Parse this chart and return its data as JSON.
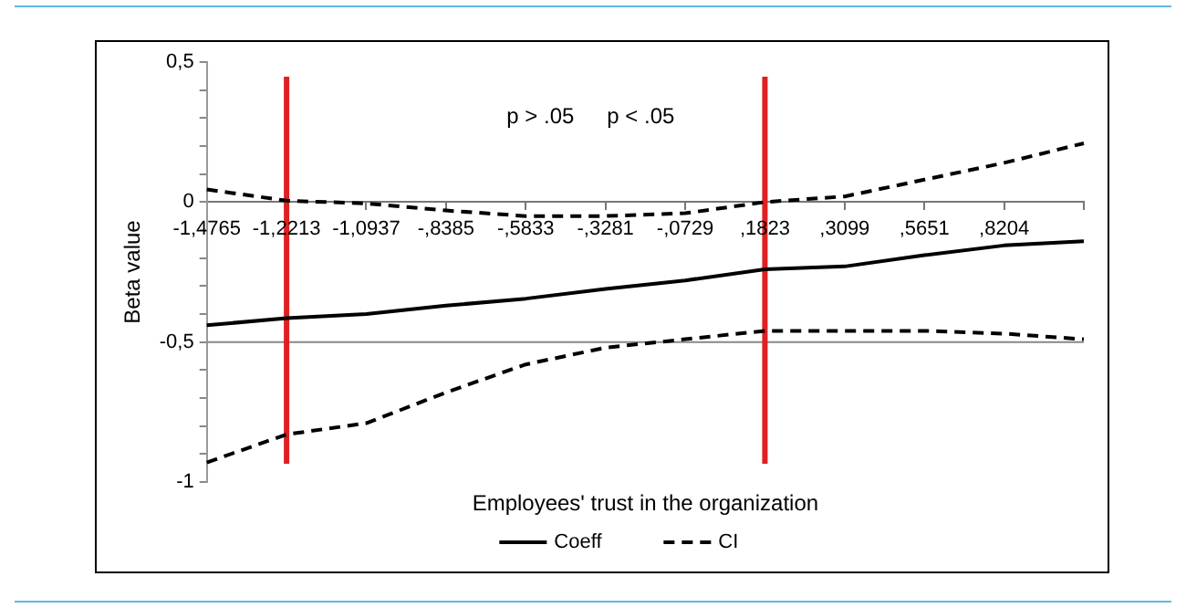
{
  "chart_data": {
    "type": "line",
    "xlabel": "Employees' trust in the organization",
    "ylabel": "Beta value",
    "categories": [
      "-1,4765",
      "-1,2213",
      "-1,0937",
      "-,8385",
      "-,5833",
      "-,3281",
      "-,0729",
      ",1823",
      ",3099",
      ",5651",
      ",8204",
      null
    ],
    "series": [
      {
        "name": "Coeff",
        "color": "#000000",
        "line_style": "solid",
        "values": [
          -0.44,
          -0.415,
          -0.4,
          -0.37,
          -0.345,
          -0.31,
          -0.28,
          -0.24,
          -0.23,
          -0.19,
          -0.155,
          -0.14
        ]
      },
      {
        "name": "CI",
        "color": "#000000",
        "line_style": "dashed",
        "values": [
          0.045,
          0.005,
          -0.005,
          -0.03,
          -0.05,
          -0.05,
          -0.04,
          0,
          0.02,
          0.08,
          0.14,
          0.21
        ]
      },
      {
        "color": "#000000",
        "line_style": "dashed",
        "values": [
          -0.93,
          -0.83,
          -0.79,
          -0.68,
          -0.58,
          -0.52,
          -0.49,
          -0.46,
          -0.46,
          -0.46,
          -0.47,
          -0.49
        ]
      }
    ],
    "ylim": [
      -1,
      0.5
    ],
    "yticks": [
      {
        "value": 0.5,
        "label": "0,5"
      },
      {
        "value": 0.4,
        "label": null
      },
      {
        "value": 0.3,
        "label": null
      },
      {
        "value": 0.2,
        "label": null
      },
      {
        "value": 0.1,
        "label": null
      },
      0,
      {
        "value": -0.1,
        "label": null
      },
      {
        "value": -0.2,
        "label": null
      },
      {
        "value": -0.3,
        "label": null
      },
      {
        "value": -0.4,
        "label": null
      },
      {
        "value": -0.5,
        "label": "-0,5"
      },
      {
        "value": -0.6,
        "label": null
      },
      {
        "value": -0.7,
        "label": null
      },
      {
        "value": -0.8,
        "label": null
      },
      {
        "value": -0.9,
        "label": null
      },
      -1
    ],
    "legend": "bottom",
    "marker": "none",
    "ref_lines": [
      {
        "axis": "y",
        "value": -0.5,
        "color": "#888888"
      },
      {
        "axis": "x",
        "value": "-1,2213",
        "color": "#e02020"
      },
      {
        "axis": "x",
        "value": ",1823",
        "color": "#e02020"
      }
    ],
    "annotations": [
      "p > .05",
      "p < .05"
    ]
  }
}
